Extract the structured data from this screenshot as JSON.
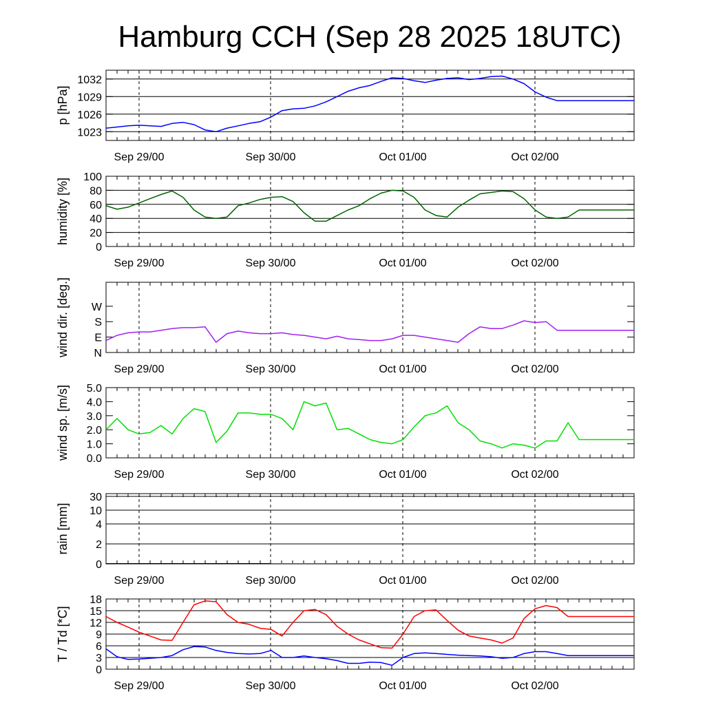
{
  "title": "Hamburg CCH (Sep 28 2025 18UTC)",
  "x_ticks": [
    "Sep 29/00",
    "Sep 30/00",
    "Oct 01/00",
    "Oct 02/00"
  ],
  "chart_data": [
    {
      "type": "line",
      "ylabel": "p [hPa]",
      "ylim": [
        1021.5,
        1033.5
      ],
      "yticks": [
        1023,
        1026,
        1029,
        1032
      ],
      "ytick_labels": [
        "1023",
        "1026",
        "1029",
        "1032"
      ],
      "solid_grid": [
        1023,
        1026,
        1029,
        1032
      ],
      "series": [
        {
          "color": "#0000ff",
          "x": [
            0,
            2,
            4,
            6,
            8,
            10,
            12,
            14,
            16,
            18,
            20,
            22,
            24,
            26,
            28,
            30,
            32,
            34,
            36,
            38,
            40,
            42,
            44,
            46,
            48,
            50,
            52,
            54,
            56,
            58,
            60,
            62,
            64,
            66,
            68,
            70,
            72,
            74,
            76,
            78,
            80,
            82,
            84,
            86,
            88,
            90,
            92,
            94,
            96
          ],
          "y": [
            1023.6,
            1023.8,
            1024.0,
            1024.1,
            1024.0,
            1023.9,
            1024.4,
            1024.6,
            1024.2,
            1023.3,
            1023.0,
            1023.6,
            1024.0,
            1024.4,
            1024.7,
            1025.5,
            1026.6,
            1026.9,
            1027.0,
            1027.4,
            1028.1,
            1029.0,
            1029.9,
            1030.5,
            1030.9,
            1031.6,
            1032.2,
            1032.1,
            1031.7,
            1031.4,
            1031.8,
            1032.1,
            1032.2,
            1031.9,
            1032.1,
            1032.4,
            1032.5,
            1032.0,
            1031.2,
            1029.8,
            1028.9,
            1028.3,
            1028.3,
            1028.3,
            1028.3,
            1028.3,
            1028.3,
            1028.3,
            1028.3
          ]
        }
      ]
    },
    {
      "type": "line",
      "ylabel": "humidity [%]",
      "ylim": [
        0,
        100
      ],
      "yticks": [
        0,
        20,
        40,
        60,
        80,
        100
      ],
      "ytick_labels": [
        "0",
        "20",
        "40",
        "60",
        "80",
        "100"
      ],
      "solid_grid": [
        20,
        40,
        60,
        80
      ],
      "series": [
        {
          "color": "#006400",
          "x": [
            0,
            2,
            4,
            6,
            8,
            10,
            12,
            14,
            16,
            18,
            20,
            22,
            24,
            26,
            28,
            30,
            32,
            34,
            36,
            38,
            40,
            42,
            44,
            46,
            48,
            50,
            52,
            54,
            56,
            58,
            60,
            62,
            64,
            66,
            68,
            70,
            72,
            74,
            76,
            78,
            80,
            82,
            84,
            86,
            88,
            90,
            92,
            94,
            96
          ],
          "y": [
            58,
            53,
            56,
            62,
            68,
            74,
            79,
            70,
            52,
            42,
            40,
            42,
            58,
            62,
            67,
            70,
            71,
            64,
            48,
            36,
            36,
            44,
            52,
            58,
            68,
            76,
            80,
            79,
            70,
            52,
            44,
            42,
            56,
            66,
            75,
            77,
            79,
            78,
            68,
            52,
            42,
            40,
            42,
            52,
            52,
            52,
            52,
            52,
            52
          ]
        }
      ]
    },
    {
      "type": "line",
      "ylabel": "wind dir. [deg.]",
      "ylim": [
        0,
        410
      ],
      "yticks": [
        0,
        90,
        180,
        270
      ],
      "ytick_labels": [
        "N",
        "E",
        "S",
        "W"
      ],
      "solid_grid": [],
      "series": [
        {
          "color": "#a020f0",
          "x": [
            0,
            2,
            4,
            6,
            8,
            10,
            12,
            14,
            16,
            18,
            20,
            22,
            24,
            26,
            28,
            30,
            32,
            34,
            36,
            38,
            40,
            42,
            44,
            46,
            48,
            50,
            52,
            54,
            56,
            58,
            60,
            62,
            64,
            66,
            68,
            70,
            72,
            74,
            76,
            78,
            80,
            82,
            84,
            86,
            88,
            90,
            92,
            94,
            96
          ],
          "y": [
            70,
            100,
            115,
            120,
            120,
            130,
            140,
            145,
            145,
            150,
            60,
            110,
            125,
            115,
            110,
            110,
            115,
            105,
            100,
            90,
            80,
            95,
            80,
            75,
            70,
            70,
            80,
            100,
            100,
            90,
            80,
            70,
            60,
            110,
            150,
            140,
            140,
            160,
            185,
            175,
            180,
            130,
            130,
            130,
            130,
            130,
            130,
            130,
            130
          ]
        }
      ]
    },
    {
      "type": "line",
      "ylabel": "wind sp. [m/s]",
      "ylim": [
        0,
        5
      ],
      "yticks": [
        0,
        1,
        2,
        3,
        4,
        5
      ],
      "ytick_labels": [
        "0.0",
        "1.0",
        "2.0",
        "3.0",
        "4.0",
        "5.0"
      ],
      "solid_grid": [],
      "series": [
        {
          "color": "#00e000",
          "x": [
            0,
            2,
            4,
            6,
            8,
            10,
            12,
            14,
            16,
            18,
            20,
            22,
            24,
            26,
            28,
            30,
            32,
            34,
            36,
            38,
            40,
            42,
            44,
            46,
            48,
            50,
            52,
            54,
            56,
            58,
            60,
            62,
            64,
            66,
            68,
            70,
            72,
            74,
            76,
            78,
            80,
            82,
            84,
            86,
            88,
            90,
            92,
            94,
            96
          ],
          "y": [
            2.0,
            2.8,
            2.0,
            1.7,
            1.8,
            2.3,
            1.7,
            2.8,
            3.5,
            3.3,
            1.1,
            1.9,
            3.2,
            3.2,
            3.1,
            3.1,
            2.8,
            2.0,
            4.0,
            3.7,
            3.9,
            2.0,
            2.1,
            1.7,
            1.3,
            1.1,
            1.0,
            1.3,
            2.2,
            3.0,
            3.2,
            3.7,
            2.5,
            2.0,
            1.2,
            1.0,
            0.7,
            1.0,
            0.9,
            0.7,
            1.2,
            1.2,
            2.5,
            1.3,
            1.3,
            1.3,
            1.3,
            1.3,
            1.3
          ]
        }
      ]
    },
    {
      "type": "line",
      "ylabel": "rain [mm]",
      "ylim": [
        0,
        32
      ],
      "yticks": [
        0,
        2,
        4,
        10,
        30
      ],
      "ytick_labels": [
        "0",
        "2",
        "4",
        "10",
        "30"
      ],
      "solid_grid": [
        2,
        4,
        10,
        30
      ],
      "series": [
        {
          "color": "#000000",
          "x": [
            0,
            30
          ],
          "y": [
            0,
            0
          ]
        },
        {
          "color": "#00a000",
          "x": [
            30,
            96
          ],
          "y": [
            0,
            0
          ]
        }
      ]
    },
    {
      "type": "line",
      "ylabel": "T / Td [*C]",
      "ylim": [
        0,
        18
      ],
      "yticks": [
        0,
        3,
        6,
        9,
        12,
        15,
        18
      ],
      "ytick_labels": [
        "0",
        "3",
        "6",
        "9",
        "12",
        "15",
        "18"
      ],
      "solid_grid": [
        3,
        6,
        9,
        12,
        15,
        18
      ],
      "series": [
        {
          "color": "#ff0000",
          "x": [
            0,
            2,
            4,
            6,
            8,
            10,
            12,
            14,
            16,
            18,
            20,
            22,
            24,
            26,
            28,
            30,
            32,
            34,
            36,
            38,
            40,
            42,
            44,
            46,
            48,
            50,
            52,
            54,
            56,
            58,
            60,
            62,
            64,
            66,
            68,
            70,
            72,
            74,
            76,
            78,
            80,
            82,
            84,
            86,
            88,
            90,
            92,
            94,
            96
          ],
          "y": [
            13.5,
            12.0,
            10.8,
            9.5,
            8.5,
            7.5,
            7.4,
            12.0,
            16.5,
            17.5,
            17.3,
            14.0,
            12.0,
            11.5,
            10.5,
            10.2,
            8.5,
            12.0,
            15.0,
            15.3,
            14.0,
            11.0,
            9.0,
            7.5,
            6.5,
            5.5,
            5.4,
            9.0,
            13.5,
            15.0,
            15.2,
            12.5,
            10.0,
            8.5,
            8.0,
            7.5,
            6.7,
            8.0,
            13.0,
            15.5,
            16.3,
            15.8,
            13.5,
            13.5,
            13.5,
            13.5,
            13.5,
            13.5,
            13.5
          ]
        },
        {
          "color": "#0000ff",
          "x": [
            0,
            2,
            4,
            6,
            8,
            10,
            12,
            14,
            16,
            18,
            20,
            22,
            24,
            26,
            28,
            30,
            32,
            34,
            36,
            38,
            40,
            42,
            44,
            46,
            48,
            50,
            52,
            54,
            56,
            58,
            60,
            62,
            64,
            66,
            68,
            70,
            72,
            74,
            76,
            78,
            80,
            82,
            84,
            86,
            88,
            90,
            92,
            94,
            96
          ],
          "y": [
            5.2,
            3.2,
            2.5,
            2.6,
            2.8,
            3.0,
            3.5,
            5.0,
            5.8,
            5.7,
            4.8,
            4.3,
            4.0,
            3.9,
            4.0,
            4.8,
            3.0,
            3.0,
            3.4,
            3.0,
            2.7,
            2.2,
            1.5,
            1.5,
            1.8,
            1.7,
            1.0,
            3.0,
            4.0,
            4.2,
            4.0,
            3.8,
            3.6,
            3.5,
            3.4,
            3.2,
            2.8,
            3.0,
            4.0,
            4.5,
            4.5,
            4.0,
            3.5,
            3.5,
            3.5,
            3.5,
            3.5,
            3.5,
            3.5
          ]
        }
      ]
    }
  ]
}
